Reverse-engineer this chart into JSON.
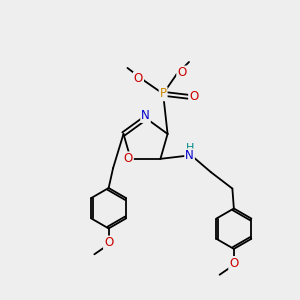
{
  "background_color": "#eeeeee",
  "bond_color": "#000000",
  "atom_colors": {
    "N": "#0000cc",
    "O": "#cc0000",
    "P": "#cc8800",
    "H": "#008888",
    "C": "#000000"
  },
  "figsize": [
    3.0,
    3.0
  ],
  "dpi": 100,
  "xlim": [
    0,
    10
  ],
  "ylim": [
    0,
    10
  ],
  "lw": 1.3,
  "fs": 8.5,
  "ring_r": 0.68
}
